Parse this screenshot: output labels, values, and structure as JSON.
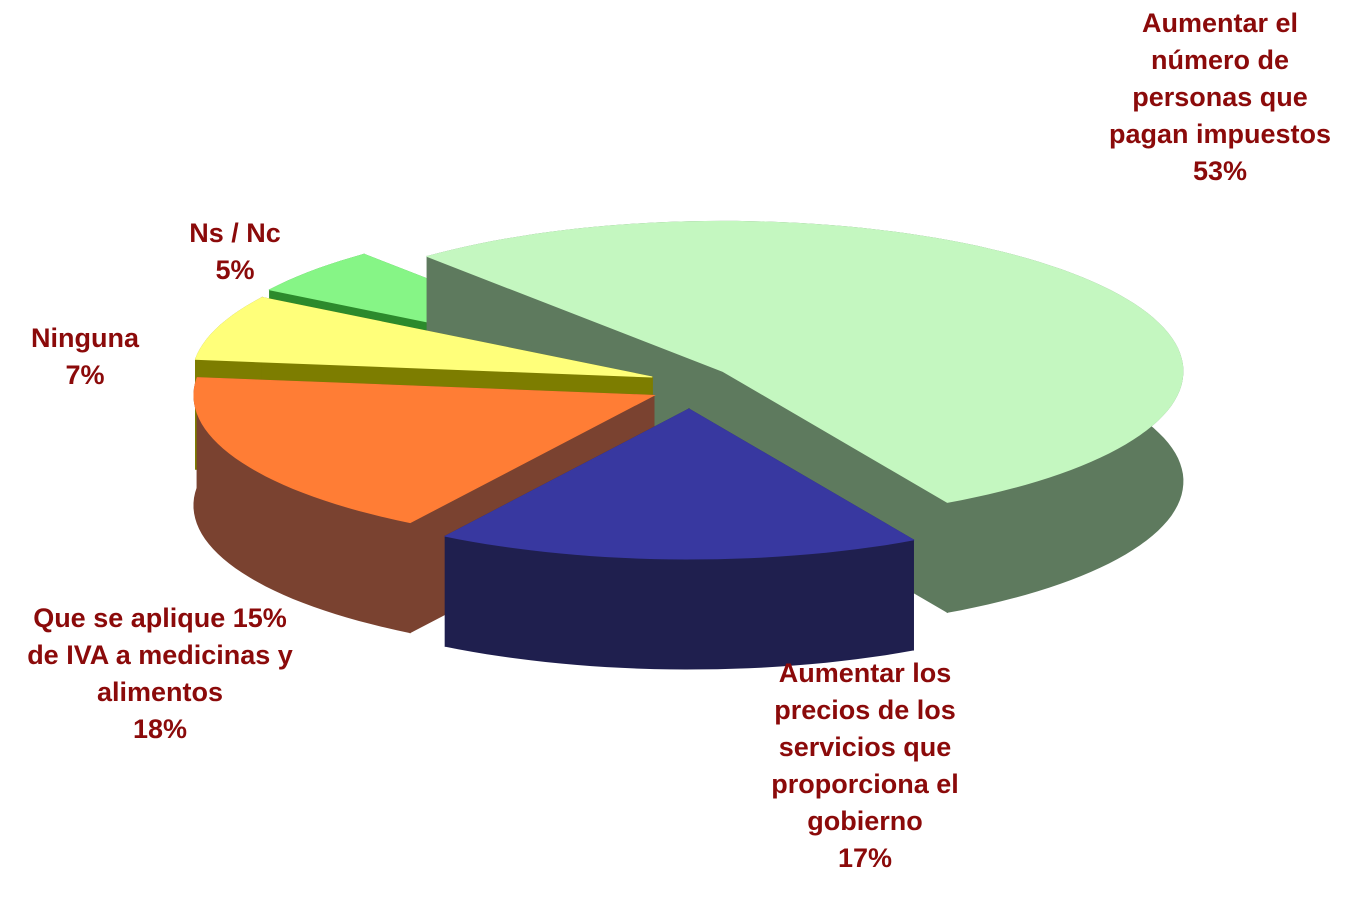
{
  "chart_data": {
    "type": "pie3d",
    "categories": [
      "Aumentar el número de personas que pagan impuestos",
      "Aumentar los precios de los servicios que proporciona el gobierno",
      "Que se aplique 15% de IVA a medicinas y alimentos",
      "Ninguna",
      "Ns / Nc"
    ],
    "values": [
      53,
      17,
      18,
      7,
      5
    ],
    "value_labels": [
      "53%",
      "17%",
      "18%",
      "7%",
      "5%"
    ],
    "colors": [
      "#c4f7c0",
      "#3838a0",
      "#ff7d35",
      "#ffff7a",
      "#86f586"
    ],
    "side_colors": [
      "#5e7a5e",
      "#1f1f4e",
      "#7a4230",
      "#7d7d00",
      "#2c8a2c"
    ]
  }
}
